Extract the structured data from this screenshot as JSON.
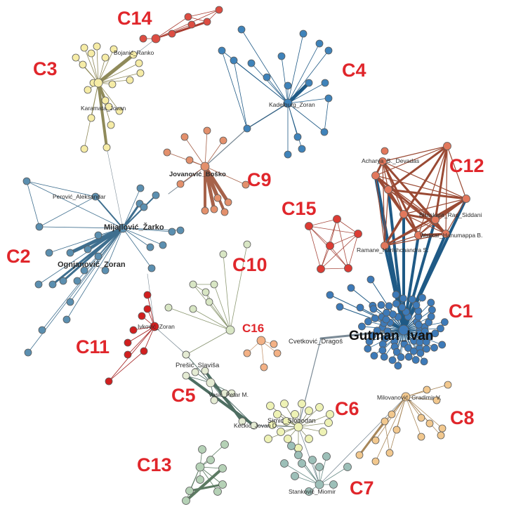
{
  "clusters": {
    "c1": {
      "label": "C1",
      "color": "#3d7ab8"
    },
    "c2": {
      "label": "C2",
      "color": "#5b8fb0"
    },
    "c3": {
      "label": "C3",
      "color": "#f6eca6"
    },
    "c4": {
      "label": "C4",
      "color": "#3f83ba"
    },
    "c5": {
      "label": "C5",
      "color": "#e4ebd3"
    },
    "c6": {
      "label": "C6",
      "color": "#eef2b5"
    },
    "c7": {
      "label": "C7",
      "color": "#9cbfb8"
    },
    "c8": {
      "label": "C8",
      "color": "#f2c88e"
    },
    "c9": {
      "label": "C9",
      "color": "#e3906c"
    },
    "c10": {
      "label": "C10",
      "color": "#d8e6c4"
    },
    "c11": {
      "label": "C11",
      "color": "#d11f1f"
    },
    "c12": {
      "label": "C12",
      "color": "#e2785c"
    },
    "c13": {
      "label": "C13",
      "color": "#b5d1b6"
    },
    "c14": {
      "label": "C14",
      "color": "#dd4d42"
    },
    "c15": {
      "label": "C15",
      "color": "#dc3c34"
    },
    "c16": {
      "label": "C16",
      "color": "#f3b185"
    }
  },
  "authors": {
    "gutman": "Gutman_Ivan",
    "mijajlovic": "Mijajlović_Žarko",
    "ognjanovic": "Ognjanović_Zoran",
    "perovic": "Perović_Aleksandar",
    "bojanic": "Bojanić_Ranko",
    "karamata": "Karamata_Jovan",
    "kadelburg": "Kadelburg_Zoran",
    "jovanovic": "Jovanović_Boško",
    "acharya": "Acharya_B._Devadas",
    "bhaskara": "Bhaskara_Rao_Siddani",
    "walikar": "Walikar_Hanumappa B.",
    "ramane": "Ramane_Harishchandra S.",
    "cvetkovic": "Cvetković_Dragoš",
    "ivkovic": "Ivković_Zoran",
    "prešic": "Prešić_Slaviša",
    "vasic": "Vasić_Petar M.",
    "simic": "Simić_Slobodan",
    "keckic": "Kečkić_Jovan D.",
    "milovanovic": "Milovanović_Gradimir V.",
    "stankovic": "Stanković_Miomir"
  }
}
